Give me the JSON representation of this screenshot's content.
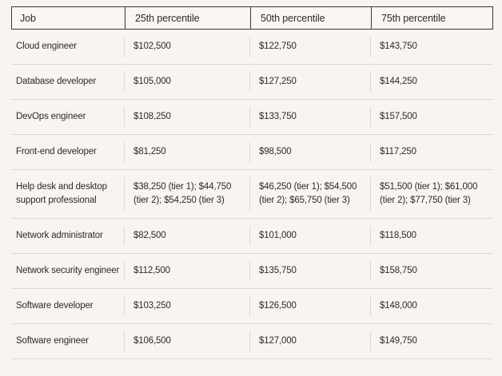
{
  "colors": {
    "background": "#f8f4ef",
    "header_background": "#faf6f2",
    "header_border": "#3a3835",
    "row_divider": "#dcd8d3",
    "text": "#2e2a25"
  },
  "table": {
    "columns": [
      "Job",
      "25th percentile",
      "50th percentile",
      "75th percentile"
    ],
    "rows": [
      {
        "job": "Cloud engineer",
        "p25": "$102,500",
        "p50": "$122,750",
        "p75": "$143,750"
      },
      {
        "job": "Database developer",
        "p25": "$105,000",
        "p50": "$127,250",
        "p75": "$144,250"
      },
      {
        "job": "DevOps engineer",
        "p25": "$108,250",
        "p50": "$133,750",
        "p75": "$157,500"
      },
      {
        "job": "Front-end developer",
        "p25": "$81,250",
        "p50": "$98,500",
        "p75": "$117,250"
      },
      {
        "job": "Help desk and desktop support professional",
        "p25": "$38,250 (tier 1); $44,750 (tier 2); $54,250 (tier 3)",
        "p50": "$46,250 (tier 1); $54,500 (tier 2); $65,750 (tier 3)",
        "p75": "$51,500 (tier 1); $61,000 (tier 2); $77,750 (tier 3)"
      },
      {
        "job": "Network administrator",
        "p25": "$82,500",
        "p50": "$101,000",
        "p75": "$118,500"
      },
      {
        "job": "Network security engineer",
        "p25": "$112,500",
        "p50": "$135,750",
        "p75": "$158,750"
      },
      {
        "job": "Software developer",
        "p25": "$103,250",
        "p50": "$126,500",
        "p75": "$148,000"
      },
      {
        "job": "Software engineer",
        "p25": "$106,500",
        "p50": "$127,000",
        "p75": "$149,750"
      }
    ]
  }
}
